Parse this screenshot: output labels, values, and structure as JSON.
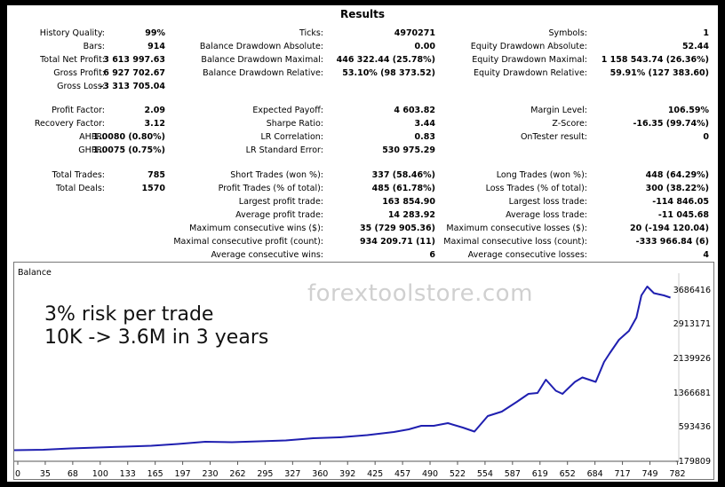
{
  "window": {
    "title": "Results"
  },
  "stats": {
    "col1": [
      {
        "label": "History Quality:",
        "value": "99%"
      },
      {
        "label": "Bars:",
        "value": "914"
      },
      {
        "label": "Total Net Profit:",
        "value": "3 613 997.63"
      },
      {
        "label": "Gross Profit:",
        "value": "6 927 702.67"
      },
      {
        "label": "Gross Loss:",
        "value": "-3 313 705.04"
      },
      {
        "label": "Profit Factor:",
        "value": "2.09"
      },
      {
        "label": "Recovery Factor:",
        "value": "3.12"
      },
      {
        "label": "AHPR:",
        "value": "1.0080 (0.80%)"
      },
      {
        "label": "GHPR:",
        "value": "1.0075 (0.75%)"
      },
      {
        "label": "Total Trades:",
        "value": "785"
      },
      {
        "label": "Total Deals:",
        "value": "1570"
      }
    ],
    "col2": [
      {
        "label": "Ticks:",
        "value": "4970271"
      },
      {
        "label": "Balance Drawdown Absolute:",
        "value": "0.00"
      },
      {
        "label": "Balance Drawdown Maximal:",
        "value": "446 322.44 (25.78%)"
      },
      {
        "label": "Balance Drawdown Relative:",
        "value": "53.10% (98 373.52)"
      },
      {
        "label": "Expected Payoff:",
        "value": "4 603.82"
      },
      {
        "label": "Sharpe Ratio:",
        "value": "3.44"
      },
      {
        "label": "LR Correlation:",
        "value": "0.83"
      },
      {
        "label": "LR Standard Error:",
        "value": "530 975.29"
      },
      {
        "label": "Short Trades (won %):",
        "value": "337 (58.46%)"
      },
      {
        "label": "Profit Trades (% of total):",
        "value": "485 (61.78%)"
      },
      {
        "label": "Largest profit trade:",
        "value": "163 854.90"
      },
      {
        "label": "Average profit trade:",
        "value": "14 283.92"
      },
      {
        "label": "Maximum consecutive wins ($):",
        "value": "35 (729 905.36)"
      },
      {
        "label": "Maximal consecutive profit (count):",
        "value": "934 209.71 (11)"
      },
      {
        "label": "Average consecutive wins:",
        "value": "6"
      }
    ],
    "col3": [
      {
        "label": "Symbols:",
        "value": "1"
      },
      {
        "label": "Equity Drawdown Absolute:",
        "value": "52.44"
      },
      {
        "label": "Equity Drawdown Maximal:",
        "value": "1 158 543.74 (26.36%)"
      },
      {
        "label": "Equity Drawdown Relative:",
        "value": "59.91% (127 383.60)"
      },
      {
        "label": "Margin Level:",
        "value": "106.59%"
      },
      {
        "label": "Z-Score:",
        "value": "-16.35 (99.74%)"
      },
      {
        "label": "OnTester result:",
        "value": "0"
      },
      {
        "label": "Long Trades (won %):",
        "value": "448 (64.29%)"
      },
      {
        "label": "Loss Trades (% of total):",
        "value": "300 (38.22%)"
      },
      {
        "label": "Largest loss trade:",
        "value": "-114 846.05"
      },
      {
        "label": "Average loss trade:",
        "value": "-11 045.68"
      },
      {
        "label": "Maximum consecutive losses ($):",
        "value": "20 (-194 120.04)"
      },
      {
        "label": "Maximal consecutive loss (count):",
        "value": "-333 966.84 (6)"
      },
      {
        "label": "Average consecutive losses:",
        "value": "4"
      }
    ]
  },
  "overlay": {
    "watermark": "forextoolstore.com",
    "line1": "3% risk per trade",
    "line2": "10K -> 3.6M in 3 years"
  },
  "chart_data": {
    "type": "line",
    "title": "Balance",
    "line_color": "#1f1fb0",
    "ylim": [
      -179809,
      4000000
    ],
    "xlim": [
      0,
      800
    ],
    "y_ticks": [
      "3686416",
      "2913171",
      "2139926",
      "1366681",
      "593436",
      "-179809"
    ],
    "x_ticks": [
      "0",
      "35",
      "68",
      "100",
      "133",
      "165",
      "197",
      "230",
      "262",
      "295",
      "327",
      "360",
      "392",
      "425",
      "457",
      "490",
      "522",
      "554",
      "587",
      "619",
      "652",
      "684",
      "717",
      "749",
      "782"
    ],
    "series": [
      {
        "values": [
          [
            0,
            10000
          ],
          [
            35,
            20000
          ],
          [
            68,
            50000
          ],
          [
            100,
            70000
          ],
          [
            133,
            90000
          ],
          [
            165,
            110000
          ],
          [
            197,
            150000
          ],
          [
            230,
            200000
          ],
          [
            262,
            190000
          ],
          [
            295,
            210000
          ],
          [
            327,
            230000
          ],
          [
            360,
            280000
          ],
          [
            392,
            300000
          ],
          [
            425,
            350000
          ],
          [
            457,
            420000
          ],
          [
            475,
            480000
          ],
          [
            490,
            560000
          ],
          [
            505,
            560000
          ],
          [
            522,
            620000
          ],
          [
            540,
            520000
          ],
          [
            554,
            430000
          ],
          [
            570,
            780000
          ],
          [
            587,
            880000
          ],
          [
            605,
            1100000
          ],
          [
            619,
            1280000
          ],
          [
            630,
            1300000
          ],
          [
            640,
            1600000
          ],
          [
            652,
            1350000
          ],
          [
            660,
            1280000
          ],
          [
            675,
            1550000
          ],
          [
            684,
            1650000
          ],
          [
            700,
            1550000
          ],
          [
            710,
            2000000
          ],
          [
            717,
            2200000
          ],
          [
            728,
            2500000
          ],
          [
            740,
            2700000
          ],
          [
            749,
            3000000
          ],
          [
            755,
            3500000
          ],
          [
            762,
            3700000
          ],
          [
            770,
            3550000
          ],
          [
            782,
            3500000
          ],
          [
            790,
            3450000
          ]
        ]
      }
    ]
  }
}
